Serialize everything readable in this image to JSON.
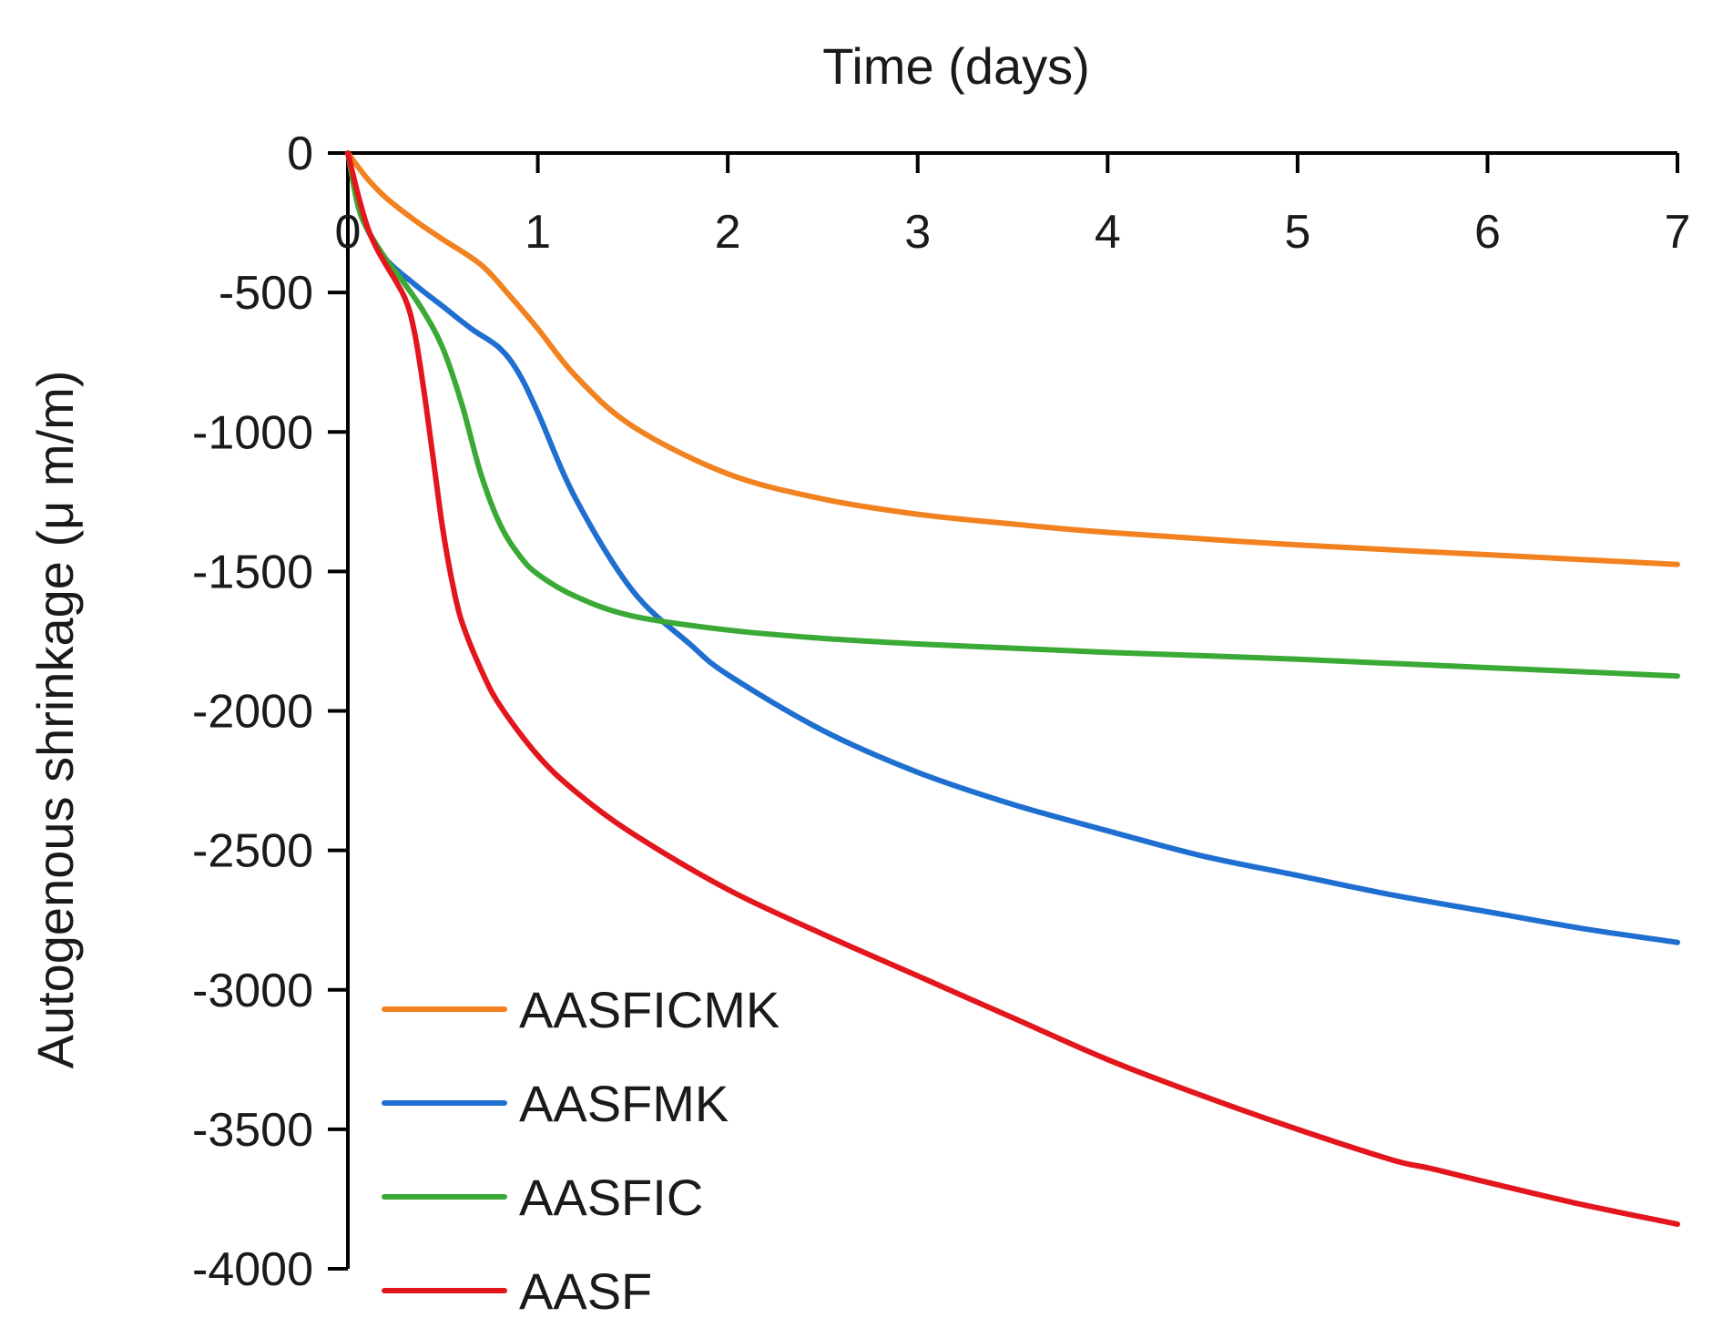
{
  "chart_data": {
    "type": "line",
    "title": "",
    "xlabel": "Time (days)",
    "ylabel": "Autogenous shrinkage (μ m/m)",
    "xlim": [
      0,
      7
    ],
    "ylim": [
      -4000,
      0
    ],
    "xticks": [
      0,
      1,
      2,
      3,
      4,
      5,
      6,
      7
    ],
    "xtick_labels": [
      "0",
      "1",
      "2",
      "3",
      "4",
      "5",
      "6",
      "7"
    ],
    "yticks": [
      0,
      -500,
      -1000,
      -1500,
      -2000,
      -2500,
      -3000,
      -3500,
      -4000
    ],
    "ytick_labels": [
      "0",
      "-500",
      "-1000",
      "-1500",
      "-2000",
      "-2500",
      "-3000",
      "-3500",
      "-4000"
    ],
    "x_axis_position": "top",
    "grid": false,
    "legend_position": "bottom-left",
    "series": [
      {
        "name": "AASFICMK",
        "color": "#F28120",
        "x": [
          0,
          0.1,
          0.2,
          0.35,
          0.5,
          0.7,
          0.85,
          1.0,
          1.2,
          1.5,
          2.0,
          2.5,
          3.0,
          3.5,
          4.0,
          5.0,
          6.0,
          7.0
        ],
        "y": [
          0,
          -90,
          -160,
          -240,
          -310,
          -400,
          -510,
          -630,
          -800,
          -980,
          -1150,
          -1240,
          -1295,
          -1330,
          -1360,
          -1405,
          -1440,
          -1475
        ]
      },
      {
        "name": "AASFMK",
        "color": "#1F6FD1",
        "x": [
          0,
          0.05,
          0.1,
          0.2,
          0.35,
          0.5,
          0.65,
          0.8,
          0.9,
          1.0,
          1.2,
          1.5,
          1.8,
          2.0,
          2.5,
          3.0,
          3.5,
          4.0,
          4.5,
          5.0,
          5.5,
          6.0,
          6.5,
          7.0
        ],
        "y": [
          0,
          -170,
          -270,
          -380,
          -470,
          -550,
          -630,
          -700,
          -790,
          -930,
          -1240,
          -1570,
          -1760,
          -1870,
          -2070,
          -2220,
          -2335,
          -2430,
          -2520,
          -2590,
          -2660,
          -2720,
          -2780,
          -2830
        ]
      },
      {
        "name": "AASFIC",
        "color": "#3AA935",
        "x": [
          0,
          0.05,
          0.1,
          0.2,
          0.3,
          0.4,
          0.5,
          0.6,
          0.7,
          0.8,
          0.9,
          1.0,
          1.2,
          1.5,
          2.0,
          2.5,
          3.0,
          3.5,
          4.0,
          5.0,
          6.0,
          7.0
        ],
        "y": [
          0,
          -180,
          -270,
          -380,
          -470,
          -570,
          -700,
          -900,
          -1150,
          -1330,
          -1440,
          -1510,
          -1590,
          -1660,
          -1710,
          -1740,
          -1760,
          -1775,
          -1790,
          -1815,
          -1845,
          -1875
        ]
      },
      {
        "name": "AASF",
        "color": "#E2161C",
        "x": [
          0,
          0.05,
          0.1,
          0.15,
          0.2,
          0.3,
          0.35,
          0.4,
          0.45,
          0.5,
          0.55,
          0.6,
          0.7,
          0.8,
          1.0,
          1.2,
          1.5,
          2.0,
          2.5,
          3.0,
          3.5,
          4.0,
          4.5,
          5.0,
          5.5,
          5.7,
          6.0,
          6.5,
          7.0
        ],
        "y": [
          0,
          -140,
          -260,
          -340,
          -400,
          -520,
          -640,
          -850,
          -1100,
          -1350,
          -1540,
          -1680,
          -1850,
          -1980,
          -2160,
          -2290,
          -2440,
          -2640,
          -2800,
          -2950,
          -3100,
          -3250,
          -3380,
          -3500,
          -3610,
          -3640,
          -3690,
          -3770,
          -3840
        ]
      }
    ]
  }
}
